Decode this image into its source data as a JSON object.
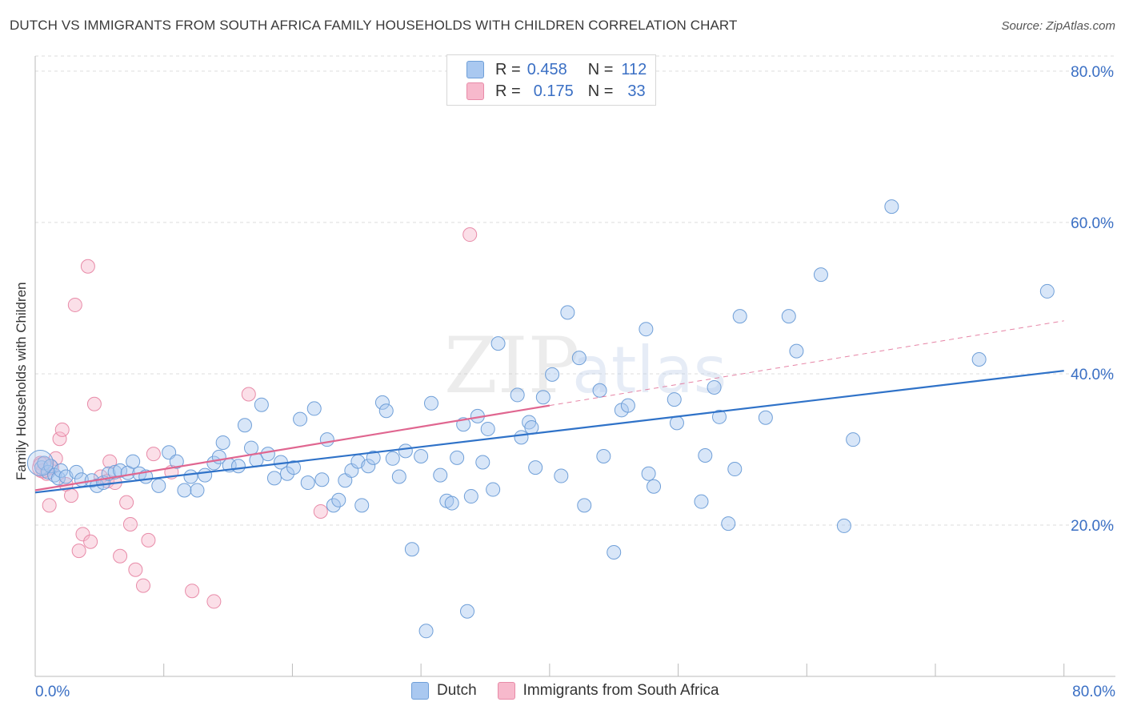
{
  "header": {
    "title": "DUTCH VS IMMIGRANTS FROM SOUTH AFRICA FAMILY HOUSEHOLDS WITH CHILDREN CORRELATION CHART",
    "source": "Source: ZipAtlas.com"
  },
  "legend": {
    "dutch": {
      "r_label": "R =",
      "r_value": "0.458",
      "n_label": "N =",
      "n_value": "112"
    },
    "sa": {
      "r_label": "R =",
      "r_value": "0.175",
      "n_label": "N =",
      "n_value": "33"
    }
  },
  "bottom_legend": {
    "dutch": "Dutch",
    "sa": "Immigrants from South Africa"
  },
  "watermark": {
    "zip": "ZIP",
    "atlas": "atlas"
  },
  "colors": {
    "dutch_fill": "#a9c8f0",
    "dutch_stroke": "#6f9fd8",
    "dutch_line": "#2f72c8",
    "sa_fill": "#f7b9cc",
    "sa_stroke": "#e88ba8",
    "sa_line": "#e06690",
    "axis_text": "#3a6fc4",
    "grid": "#dddddd"
  },
  "chart_data": {
    "type": "scatter",
    "title": "DUTCH VS IMMIGRANTS FROM SOUTH AFRICA FAMILY HOUSEHOLDS WITH CHILDREN CORRELATION CHART",
    "xlabel": "",
    "ylabel": "Family Households with Children",
    "xlim": [
      0,
      84
    ],
    "ylim": [
      0,
      82
    ],
    "x_tick_labels": [
      "0.0%",
      "80.0%"
    ],
    "y_ticks": [
      20,
      40,
      60,
      80
    ],
    "y_tick_labels": [
      "20.0%",
      "40.0%",
      "60.0%",
      "80.0%"
    ],
    "series": [
      {
        "name": "Dutch",
        "R": 0.458,
        "N": 112,
        "trend": {
          "x": [
            0,
            80
          ],
          "y": [
            24.3,
            40.4
          ],
          "dashed_to": null
        },
        "points": [
          [
            0.5,
            27.6
          ],
          [
            0.7,
            28.2
          ],
          [
            1.0,
            27.0
          ],
          [
            1.2,
            27.8
          ],
          [
            1.5,
            26.6
          ],
          [
            1.8,
            26.2
          ],
          [
            2.0,
            27.2
          ],
          [
            2.4,
            26.4
          ],
          [
            3.2,
            27.0
          ],
          [
            3.6,
            26.0
          ],
          [
            4.4,
            25.9
          ],
          [
            4.8,
            25.2
          ],
          [
            5.3,
            25.6
          ],
          [
            5.7,
            26.8
          ],
          [
            6.2,
            27.0
          ],
          [
            6.6,
            27.2
          ],
          [
            7.2,
            26.9
          ],
          [
            7.6,
            28.4
          ],
          [
            8.1,
            26.8
          ],
          [
            8.6,
            26.4
          ],
          [
            9.6,
            25.2
          ],
          [
            10.4,
            29.6
          ],
          [
            11.0,
            28.4
          ],
          [
            11.6,
            24.6
          ],
          [
            12.1,
            26.4
          ],
          [
            12.6,
            24.6
          ],
          [
            13.2,
            26.6
          ],
          [
            13.9,
            28.2
          ],
          [
            14.3,
            29.0
          ],
          [
            14.6,
            30.9
          ],
          [
            15.1,
            27.9
          ],
          [
            15.8,
            27.8
          ],
          [
            16.3,
            33.2
          ],
          [
            16.8,
            30.2
          ],
          [
            17.2,
            28.6
          ],
          [
            17.6,
            35.9
          ],
          [
            18.1,
            29.4
          ],
          [
            18.6,
            26.2
          ],
          [
            19.1,
            28.3
          ],
          [
            19.6,
            26.8
          ],
          [
            20.1,
            27.6
          ],
          [
            20.6,
            34.0
          ],
          [
            21.2,
            25.6
          ],
          [
            21.7,
            35.4
          ],
          [
            22.3,
            26.0
          ],
          [
            22.7,
            31.3
          ],
          [
            23.2,
            22.6
          ],
          [
            23.6,
            23.3
          ],
          [
            24.1,
            25.9
          ],
          [
            24.6,
            27.2
          ],
          [
            25.1,
            28.4
          ],
          [
            25.4,
            22.6
          ],
          [
            25.9,
            27.8
          ],
          [
            26.3,
            28.9
          ],
          [
            27.0,
            36.2
          ],
          [
            27.3,
            35.1
          ],
          [
            27.8,
            28.8
          ],
          [
            28.3,
            26.4
          ],
          [
            28.8,
            29.8
          ],
          [
            29.3,
            16.8
          ],
          [
            30.0,
            29.1
          ],
          [
            30.4,
            6.0
          ],
          [
            30.8,
            36.1
          ],
          [
            31.5,
            26.6
          ],
          [
            32.0,
            23.2
          ],
          [
            32.4,
            22.9
          ],
          [
            32.8,
            28.9
          ],
          [
            33.3,
            33.3
          ],
          [
            33.6,
            8.6
          ],
          [
            33.9,
            23.8
          ],
          [
            34.4,
            34.4
          ],
          [
            34.8,
            28.3
          ],
          [
            35.2,
            32.7
          ],
          [
            35.6,
            24.7
          ],
          [
            36.0,
            44.0
          ],
          [
            37.5,
            37.2
          ],
          [
            37.8,
            31.6
          ],
          [
            38.4,
            33.6
          ],
          [
            38.6,
            32.9
          ],
          [
            38.9,
            27.6
          ],
          [
            39.5,
            36.9
          ],
          [
            40.2,
            39.9
          ],
          [
            40.9,
            26.5
          ],
          [
            41.4,
            48.1
          ],
          [
            42.3,
            42.1
          ],
          [
            42.7,
            22.6
          ],
          [
            43.9,
            37.8
          ],
          [
            44.2,
            29.1
          ],
          [
            45.0,
            16.4
          ],
          [
            45.6,
            35.2
          ],
          [
            46.1,
            35.8
          ],
          [
            47.5,
            45.9
          ],
          [
            47.7,
            26.8
          ],
          [
            48.1,
            25.1
          ],
          [
            49.7,
            36.6
          ],
          [
            49.9,
            33.5
          ],
          [
            51.8,
            23.1
          ],
          [
            52.1,
            29.2
          ],
          [
            52.8,
            38.2
          ],
          [
            53.2,
            34.3
          ],
          [
            53.9,
            20.2
          ],
          [
            54.4,
            27.4
          ],
          [
            54.8,
            47.6
          ],
          [
            56.8,
            34.2
          ],
          [
            58.6,
            47.6
          ],
          [
            59.2,
            43.0
          ],
          [
            61.1,
            53.1
          ],
          [
            62.9,
            19.9
          ],
          [
            63.6,
            31.3
          ],
          [
            66.6,
            62.1
          ],
          [
            73.4,
            41.9
          ],
          [
            78.7,
            50.9
          ]
        ]
      },
      {
        "name": "Immigrants from South Africa",
        "R": 0.175,
        "N": 33,
        "trend": {
          "x": [
            0,
            40
          ],
          "y": [
            24.6,
            35.8
          ],
          "dashed_to": [
            80,
            47.0
          ]
        },
        "points": [
          [
            0.4,
            28.2
          ],
          [
            0.6,
            27.2
          ],
          [
            0.9,
            26.8
          ],
          [
            1.3,
            27.6
          ],
          [
            1.6,
            28.8
          ],
          [
            1.9,
            31.4
          ],
          [
            2.1,
            32.6
          ],
          [
            2.4,
            25.4
          ],
          [
            2.8,
            23.9
          ],
          [
            3.1,
            49.1
          ],
          [
            3.4,
            16.6
          ],
          [
            3.7,
            18.8
          ],
          [
            4.1,
            54.2
          ],
          [
            4.3,
            17.8
          ],
          [
            4.6,
            36.0
          ],
          [
            5.1,
            26.4
          ],
          [
            5.6,
            25.8
          ],
          [
            5.8,
            28.4
          ],
          [
            6.2,
            25.6
          ],
          [
            6.6,
            15.9
          ],
          [
            7.1,
            23.0
          ],
          [
            7.4,
            20.1
          ],
          [
            7.8,
            14.1
          ],
          [
            8.4,
            12.0
          ],
          [
            8.8,
            18.0
          ],
          [
            9.2,
            29.4
          ],
          [
            10.6,
            27.0
          ],
          [
            12.2,
            11.3
          ],
          [
            13.9,
            9.9
          ],
          [
            16.6,
            37.3
          ],
          [
            22.2,
            21.8
          ],
          [
            33.8,
            58.4
          ],
          [
            1.1,
            22.6
          ]
        ]
      }
    ]
  }
}
